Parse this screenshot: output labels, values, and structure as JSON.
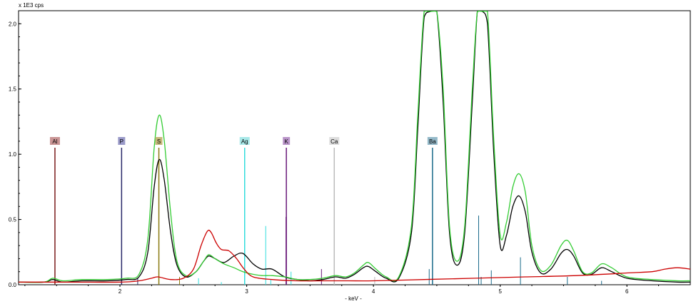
{
  "chart_data": {
    "type": "line",
    "title": "",
    "y_unit_label": "x 1E3 cps",
    "xlabel": "- keV -",
    "xlim": [
      1.2,
      6.5
    ],
    "ylim": [
      0,
      2.1
    ],
    "x_ticks": [
      2,
      3,
      4,
      5,
      6
    ],
    "y_ticks": [
      0.0,
      0.5,
      1.0,
      1.5,
      2.0
    ],
    "y_tick_labels": [
      "0.0",
      "0.5",
      "1.0",
      "1.5",
      "2.0"
    ],
    "grid": false,
    "legend": "none",
    "series": [
      {
        "color": "#000000",
        "x": [
          1.2,
          1.4,
          1.47,
          1.55,
          1.7,
          1.9,
          2.05,
          2.15,
          2.22,
          2.27,
          2.31,
          2.35,
          2.4,
          2.45,
          2.52,
          2.6,
          2.66,
          2.7,
          2.75,
          2.82,
          2.9,
          2.97,
          3.05,
          3.12,
          3.2,
          3.3,
          3.4,
          3.5,
          3.6,
          3.7,
          3.78,
          3.85,
          3.92,
          3.96,
          4.02,
          4.1,
          4.2,
          4.3,
          4.35,
          4.4,
          4.45,
          4.5,
          4.55,
          4.6,
          4.66,
          4.72,
          4.78,
          4.82,
          4.86,
          4.9,
          4.95,
          5.0,
          5.05,
          5.1,
          5.15,
          5.2,
          5.25,
          5.32,
          5.4,
          5.48,
          5.53,
          5.58,
          5.65,
          5.72,
          5.8,
          5.88,
          6.0,
          6.2,
          6.4,
          6.5
        ],
        "y": [
          0.02,
          0.02,
          0.04,
          0.02,
          0.03,
          0.03,
          0.04,
          0.06,
          0.25,
          0.75,
          0.96,
          0.8,
          0.4,
          0.15,
          0.06,
          0.1,
          0.18,
          0.22,
          0.2,
          0.17,
          0.22,
          0.24,
          0.16,
          0.12,
          0.12,
          0.06,
          0.04,
          0.03,
          0.04,
          0.06,
          0.05,
          0.08,
          0.13,
          0.14,
          0.1,
          0.05,
          0.05,
          0.4,
          1.2,
          2.05,
          2.5,
          2.3,
          1.4,
          0.4,
          0.15,
          0.4,
          1.4,
          2.4,
          2.5,
          2.0,
          1.0,
          0.3,
          0.38,
          0.6,
          0.68,
          0.55,
          0.25,
          0.09,
          0.12,
          0.24,
          0.27,
          0.22,
          0.09,
          0.08,
          0.13,
          0.1,
          0.05,
          0.03,
          0.02,
          0.02
        ]
      },
      {
        "color": "#33cc33",
        "x": [
          1.2,
          1.4,
          1.47,
          1.55,
          1.7,
          1.9,
          2.05,
          2.15,
          2.22,
          2.27,
          2.31,
          2.35,
          2.4,
          2.45,
          2.52,
          2.6,
          2.66,
          2.7,
          2.75,
          2.82,
          2.9,
          2.97,
          3.05,
          3.12,
          3.2,
          3.3,
          3.4,
          3.5,
          3.6,
          3.7,
          3.78,
          3.85,
          3.92,
          3.96,
          4.02,
          4.1,
          4.2,
          4.3,
          4.35,
          4.4,
          4.45,
          4.5,
          4.55,
          4.6,
          4.66,
          4.72,
          4.78,
          4.82,
          4.86,
          4.9,
          4.95,
          5.0,
          5.05,
          5.1,
          5.15,
          5.2,
          5.25,
          5.32,
          5.4,
          5.48,
          5.53,
          5.58,
          5.65,
          5.72,
          5.8,
          5.88,
          6.0,
          6.2,
          6.4,
          6.5
        ],
        "y": [
          0.02,
          0.02,
          0.05,
          0.03,
          0.04,
          0.04,
          0.05,
          0.08,
          0.35,
          1.05,
          1.3,
          1.1,
          0.55,
          0.18,
          0.07,
          0.1,
          0.18,
          0.23,
          0.2,
          0.16,
          0.13,
          0.1,
          0.08,
          0.07,
          0.07,
          0.06,
          0.04,
          0.04,
          0.05,
          0.07,
          0.06,
          0.09,
          0.15,
          0.17,
          0.12,
          0.06,
          0.06,
          0.45,
          1.3,
          2.2,
          2.6,
          2.4,
          1.5,
          0.45,
          0.18,
          0.45,
          1.5,
          2.5,
          2.6,
          2.1,
          1.1,
          0.38,
          0.48,
          0.75,
          0.85,
          0.7,
          0.3,
          0.11,
          0.15,
          0.3,
          0.34,
          0.26,
          0.1,
          0.09,
          0.16,
          0.13,
          0.06,
          0.04,
          0.03,
          0.03
        ]
      },
      {
        "color": "#cc0000",
        "x": [
          1.2,
          1.5,
          2.0,
          2.15,
          2.25,
          2.3,
          2.4,
          2.5,
          2.58,
          2.64,
          2.69,
          2.72,
          2.76,
          2.8,
          2.86,
          2.92,
          2.98,
          3.05,
          3.2,
          3.4,
          3.6,
          3.8,
          4.0,
          4.4,
          4.8,
          5.2,
          5.6,
          6.0,
          6.2,
          6.3,
          6.4,
          6.5
        ],
        "y": [
          0.02,
          0.02,
          0.02,
          0.03,
          0.05,
          0.06,
          0.04,
          0.05,
          0.12,
          0.3,
          0.41,
          0.4,
          0.32,
          0.27,
          0.26,
          0.2,
          0.12,
          0.06,
          0.04,
          0.03,
          0.03,
          0.03,
          0.03,
          0.04,
          0.05,
          0.06,
          0.07,
          0.09,
          0.1,
          0.12,
          0.13,
          0.12
        ]
      }
    ],
    "element_markers": [
      {
        "symbol": "Al",
        "energy": 1.487,
        "color": "#7a1a1a",
        "label_bg": "#c99494"
      },
      {
        "symbol": "P",
        "energy": 2.013,
        "color": "#2a2a6a",
        "label_bg": "#9a9ac9"
      },
      {
        "symbol": "S",
        "energy": 2.307,
        "color": "#8a7a10",
        "label_bg": "#c6b87a"
      },
      {
        "symbol": "Ag",
        "energy": 2.984,
        "color": "#33dddd",
        "label_bg": "#a8e8e8"
      },
      {
        "symbol": "K",
        "energy": 3.313,
        "color": "#6a1a7a",
        "label_bg": "#b994c9"
      },
      {
        "symbol": "Ca",
        "energy": 3.691,
        "color": "#bbbbbb",
        "label_bg": "#dddddd"
      },
      {
        "symbol": "Ba",
        "energy": 4.466,
        "color": "#1a6a8a",
        "label_bg": "#94b9c9"
      }
    ],
    "minor_lines": [
      {
        "energy": 2.14,
        "height": 0.05,
        "color": "#2a2a6a"
      },
      {
        "energy": 2.47,
        "height": 0.06,
        "color": "#8a7a10"
      },
      {
        "energy": 2.62,
        "height": 0.05,
        "color": "#33dddd"
      },
      {
        "energy": 2.8,
        "height": 0.02,
        "color": "#33dddd"
      },
      {
        "energy": 3.15,
        "height": 0.45,
        "color": "#33dddd"
      },
      {
        "energy": 3.19,
        "height": 0.04,
        "color": "#33dddd"
      },
      {
        "energy": 3.35,
        "height": 0.1,
        "color": "#33dddd"
      },
      {
        "energy": 3.31,
        "height": 0.52,
        "color": "#6a1a7a"
      },
      {
        "energy": 3.59,
        "height": 0.12,
        "color": "#6a1a7a"
      },
      {
        "energy": 3.69,
        "height": 0.52,
        "color": "#bbbbbb"
      },
      {
        "energy": 4.01,
        "height": 0.06,
        "color": "#bbbbbb"
      },
      {
        "energy": 4.44,
        "height": 0.12,
        "color": "#1a6a8a"
      },
      {
        "energy": 4.83,
        "height": 0.53,
        "color": "#1a6a8a"
      },
      {
        "energy": 4.85,
        "height": 0.06,
        "color": "#1a6a8a"
      },
      {
        "energy": 4.93,
        "height": 0.11,
        "color": "#1a6a8a"
      },
      {
        "energy": 5.16,
        "height": 0.21,
        "color": "#1a6a8a"
      },
      {
        "energy": 5.53,
        "height": 0.06,
        "color": "#1a6a8a"
      },
      {
        "energy": 5.8,
        "height": 0.03,
        "color": "#1a6a8a"
      }
    ]
  }
}
